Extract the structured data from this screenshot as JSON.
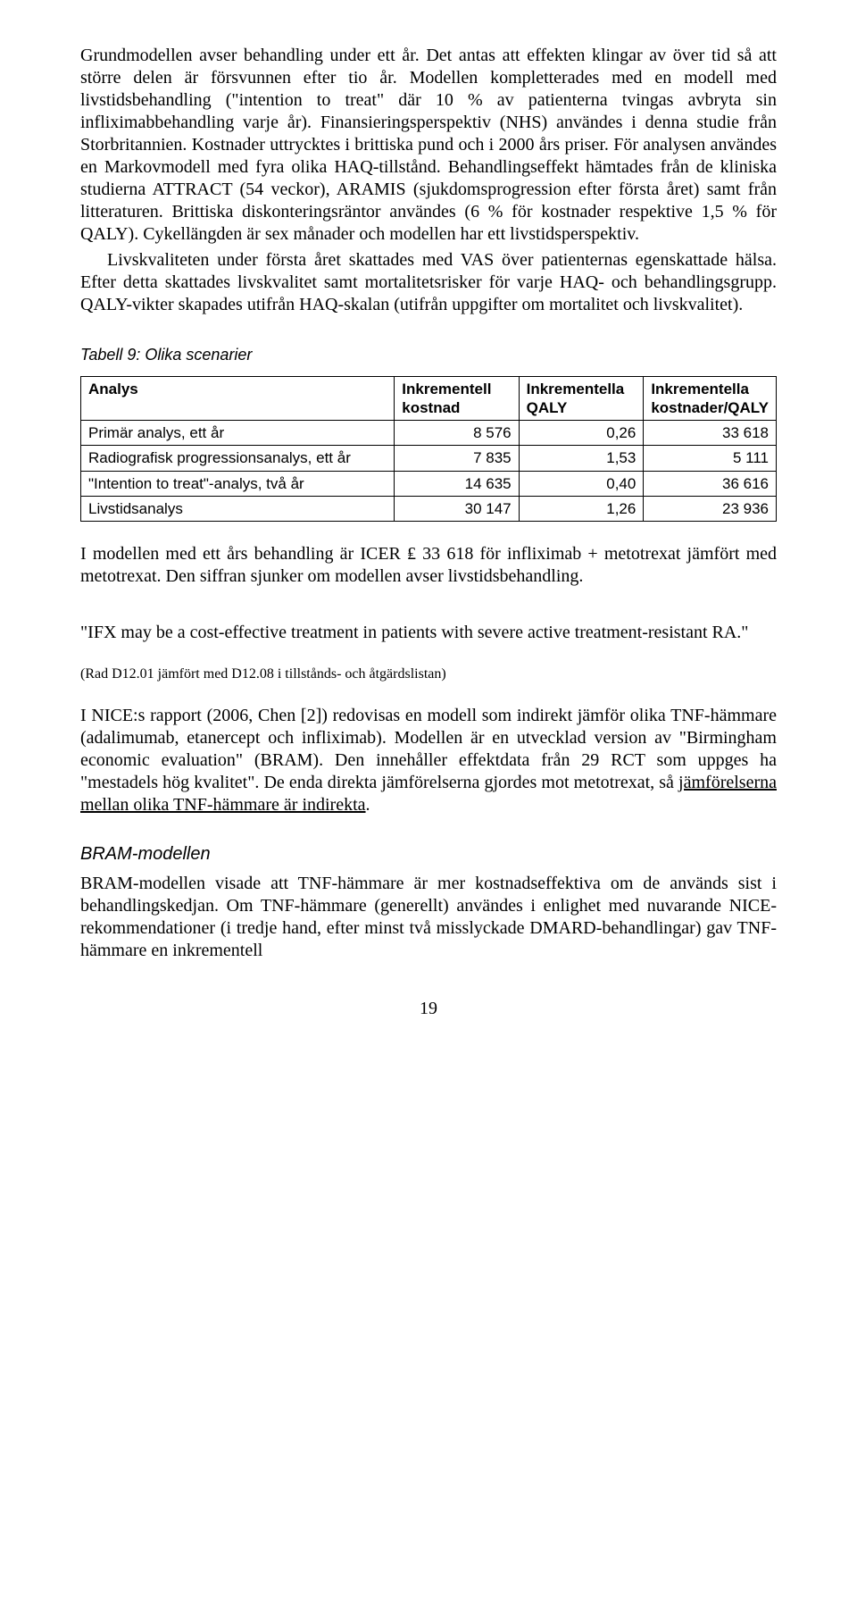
{
  "paragraphs": {
    "p1a": "Grundmodellen avser behandling under ett år. Det antas att effekten klingar av över tid så att större delen är försvunnen efter tio år. Modellen kompletterades med en modell med livstidsbehandling (\"intention to treat\" där 10 % av patienterna tvingas avbryta sin infliximabbehandling varje år). Finansieringsperspektiv (NHS) användes i denna studie från Storbritannien. Kostnader uttrycktes i brittiska pund och i 2000 års priser. För analysen användes en Markovmodell med fyra olika HAQ-tillstånd. Behandlingseffekt hämtades från de kliniska studierna ATTRACT (54 veckor), ARAMIS (sjukdomsprogression efter första året) samt från litteraturen. Brittiska diskonteringsräntor användes (6 % för kostnader respektive 1,5 % för QALY). Cykellängden är sex månader och modellen har ett livstidsperspektiv.",
    "p1b": "Livskvaliteten under första året skattades med VAS över patienternas egenskattade hälsa. Efter detta skattades livskvalitet samt mortalitetsrisker för varje HAQ- och behandlingsgrupp. QALY-vikter skapades utifrån HAQ-skalan (utifrån uppgifter om mortalitet och livskvalitet).",
    "p2": "I modellen med ett års behandling är ICER ₤ 33 618 för infliximab + metotrexat jämfört med metotrexat. Den siffran sjunker om modellen avser livstidsbehandling.",
    "quote": "\"IFX may be a cost-effective treatment in patients with severe active treatment-resistant RA.\"",
    "ref": "(Rad D12.01 jämfört med D12.08 i tillstånds- och åtgärdslistan)",
    "p3a": "I NICE:s rapport (2006, Chen [2]) redovisas en modell som indirekt jämför olika TNF-hämmare (adalimumab, etanercept och infliximab). Modellen är en utvecklad version av \"Birmingham economic evaluation\" (BRAM). Den innehåller effektdata från 29 RCT som uppges ha \"mestadels hög kvalitet\". De enda direkta jämförelserna gjordes mot metotrexat, så ",
    "p3b_under": "jämförelserna mellan olika TNF-hämmare är indirekta",
    "p3c": ".",
    "p4": "BRAM-modellen visade att TNF-hämmare är mer kostnadseffektiva om de används sist i behandlingskedjan. Om TNF-hämmare (generellt) användes i enlighet med nuvarande NICE-rekommendationer (i tredje hand, efter minst två misslyckade DMARD-behandlingar) gav TNF-hämmare en inkrementell"
  },
  "table": {
    "caption": "Tabell 9: Olika scenarier",
    "headers": {
      "h1": "Analys",
      "h2a": "Inkrementell",
      "h2b": "kostnad",
      "h3a": "Inkrementella",
      "h3b": "QALY",
      "h4a": "Inkrementella",
      "h4b": "kostnader/QALY"
    },
    "rows": [
      {
        "label": "Primär analys, ett år",
        "cost": "8 576",
        "qaly": "0,26",
        "ratio": "33 618"
      },
      {
        "label": "Radiografisk progressionsanalys, ett år",
        "cost": "7 835",
        "qaly": "1,53",
        "ratio": "5 111"
      },
      {
        "label": "\"Intention to treat\"-analys, två år",
        "cost": "14 635",
        "qaly": "0,40",
        "ratio": "36 616"
      },
      {
        "label": "Livstidsanalys",
        "cost": "30 147",
        "qaly": "1,26",
        "ratio": "23 936"
      }
    ]
  },
  "section_title": "BRAM-modellen",
  "page_number": "19"
}
